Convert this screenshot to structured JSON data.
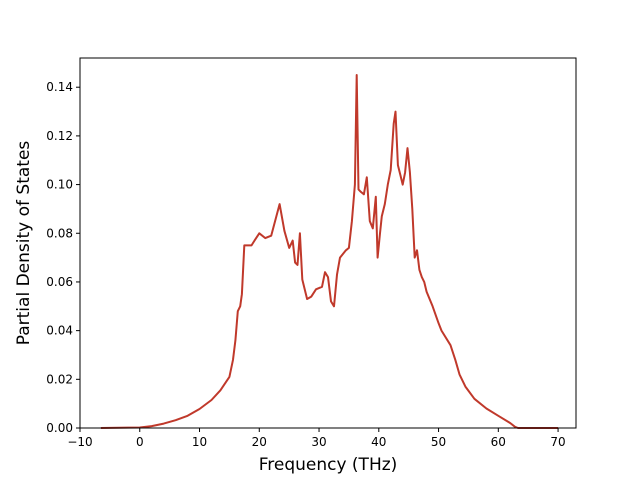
{
  "chart_data": {
    "type": "line",
    "title": "",
    "xlabel": "Frequency (THz)",
    "ylabel": "Partial Density of States",
    "xlim": [
      -10,
      73
    ],
    "ylim": [
      0,
      0.152
    ],
    "x_ticks": [
      -10,
      0,
      10,
      20,
      30,
      40,
      50,
      60,
      70
    ],
    "x_tick_labels": [
      "−10",
      "0",
      "10",
      "20",
      "30",
      "40",
      "50",
      "60",
      "70"
    ],
    "y_ticks": [
      0,
      0.02,
      0.04,
      0.06,
      0.08,
      0.1,
      0.12,
      0.14
    ],
    "y_tick_labels": [
      "0.00",
      "0.02",
      "0.04",
      "0.06",
      "0.08",
      "0.10",
      "0.12",
      "0.14"
    ],
    "grid": false,
    "series": [
      {
        "color": "#c0392b",
        "x": [
          -6.5,
          0,
          2,
          4,
          6,
          8,
          10,
          12,
          13.5,
          15,
          15.6,
          16,
          16.4,
          16.8,
          17.1,
          17.5,
          18,
          18.7,
          19.2,
          20,
          21,
          22,
          23.4,
          24.2,
          25,
          25.6,
          26,
          26.4,
          26.8,
          27.2,
          28,
          28.7,
          29.5,
          30.5,
          31,
          31.5,
          32,
          32.5,
          33,
          33.5,
          34.5,
          35,
          35.5,
          36,
          36.3,
          36.6,
          37,
          37.5,
          38,
          38.5,
          39,
          39.5,
          39.8,
          40.2,
          40.5,
          41,
          41.5,
          42,
          42.5,
          42.8,
          43.2,
          43.6,
          44,
          44.4,
          44.8,
          45.2,
          45.6,
          46,
          46.4,
          46.8,
          47.2,
          47.6,
          48,
          49,
          50,
          50.5,
          52,
          52.8,
          53.5,
          54.5,
          56,
          58,
          60,
          62,
          62.8,
          63.3,
          70
        ],
        "values": [
          0,
          0.0002,
          0.0008,
          0.0018,
          0.0032,
          0.005,
          0.0078,
          0.0115,
          0.0155,
          0.021,
          0.028,
          0.036,
          0.048,
          0.05,
          0.055,
          0.075,
          0.075,
          0.075,
          0.077,
          0.08,
          0.078,
          0.079,
          0.092,
          0.081,
          0.074,
          0.077,
          0.068,
          0.067,
          0.08,
          0.061,
          0.053,
          0.054,
          0.057,
          0.058,
          0.064,
          0.062,
          0.052,
          0.05,
          0.063,
          0.07,
          0.073,
          0.074,
          0.085,
          0.1,
          0.145,
          0.098,
          0.097,
          0.096,
          0.103,
          0.085,
          0.082,
          0.095,
          0.07,
          0.08,
          0.087,
          0.092,
          0.1,
          0.106,
          0.125,
          0.13,
          0.108,
          0.104,
          0.1,
          0.105,
          0.115,
          0.105,
          0.09,
          0.07,
          0.073,
          0.065,
          0.062,
          0.06,
          0.056,
          0.05,
          0.043,
          0.04,
          0.034,
          0.028,
          0.022,
          0.017,
          0.012,
          0.008,
          0.005,
          0.002,
          0.0005,
          0,
          0
        ]
      }
    ]
  }
}
